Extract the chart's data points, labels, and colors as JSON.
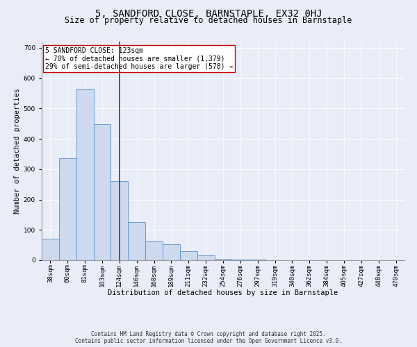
{
  "title": "5, SANDFORD CLOSE, BARNSTAPLE, EX32 0HJ",
  "subtitle": "Size of property relative to detached houses in Barnstaple",
  "xlabel": "Distribution of detached houses by size in Barnstaple",
  "ylabel": "Number of detached properties",
  "bar_labels": [
    "38sqm",
    "60sqm",
    "81sqm",
    "103sqm",
    "124sqm",
    "146sqm",
    "168sqm",
    "189sqm",
    "211sqm",
    "232sqm",
    "254sqm",
    "276sqm",
    "297sqm",
    "319sqm",
    "340sqm",
    "362sqm",
    "384sqm",
    "405sqm",
    "427sqm",
    "448sqm",
    "470sqm"
  ],
  "bar_values": [
    70,
    335,
    565,
    448,
    260,
    125,
    65,
    52,
    30,
    15,
    5,
    3,
    2,
    1,
    1,
    1,
    0,
    0,
    0,
    0,
    0
  ],
  "bar_color": "#ccd9ee",
  "bar_edge_color": "#5b8fcf",
  "vline_x": 4,
  "vline_color": "#cc0000",
  "annotation_text": "5 SANDFORD CLOSE: 123sqm\n← 70% of detached houses are smaller (1,379)\n29% of semi-detached houses are larger (578) →",
  "annotation_box_color": "#ffffff",
  "annotation_box_edge": "#cc0000",
  "ylim": [
    0,
    720
  ],
  "yticks": [
    0,
    100,
    200,
    300,
    400,
    500,
    600,
    700
  ],
  "background_color": "#e8edf8",
  "footer_line1": "Contains HM Land Registry data © Crown copyright and database right 2025.",
  "footer_line2": "Contains public sector information licensed under the Open Government Licence v3.0.",
  "title_fontsize": 10,
  "subtitle_fontsize": 8.5,
  "tick_fontsize": 6.5,
  "axis_label_fontsize": 7.5,
  "annotation_fontsize": 7,
  "footer_fontsize": 5.5
}
